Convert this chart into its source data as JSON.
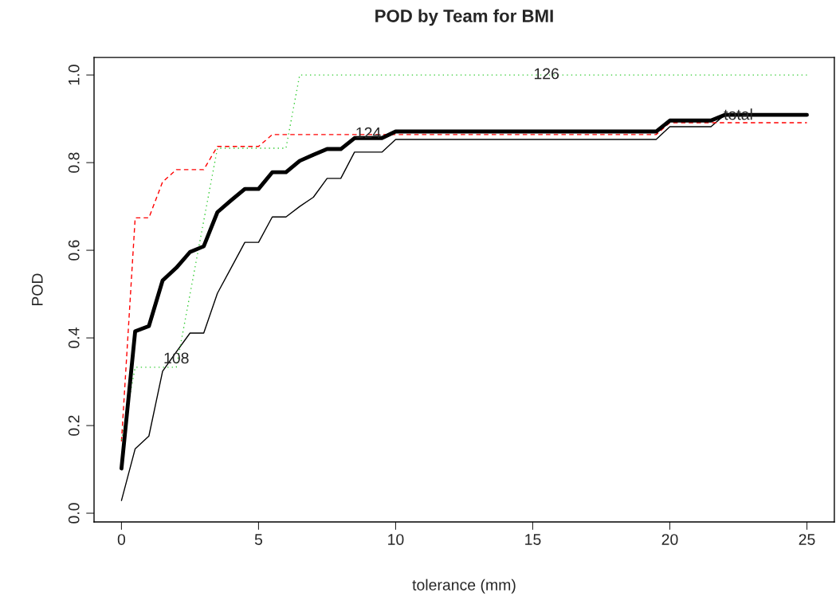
{
  "chart_data": {
    "type": "line",
    "title": "POD by Team for BMI",
    "xlabel": "tolerance (mm)",
    "ylabel": "POD",
    "x": [
      0,
      0.5,
      1,
      1.5,
      2,
      2.5,
      3,
      3.5,
      4,
      4.5,
      5,
      5.5,
      6,
      6.5,
      7,
      7.5,
      8,
      8.5,
      9,
      9.5,
      10,
      10.5,
      11,
      11.5,
      12,
      12.5,
      13,
      13.5,
      14,
      14.5,
      15,
      15.5,
      16,
      16.5,
      17,
      17.5,
      18,
      18.5,
      19,
      19.5,
      20,
      20.5,
      21,
      21.5,
      22,
      22.5,
      23,
      23.5,
      24,
      24.5,
      25
    ],
    "series": [
      {
        "color": "#000000",
        "line_style": "solid",
        "values": [
          0.029,
          0.147,
          0.176,
          0.324,
          0.368,
          0.411,
          0.411,
          0.502,
          0.56,
          0.618,
          0.618,
          0.676,
          0.676,
          0.7,
          0.721,
          0.764,
          0.764,
          0.824,
          0.824,
          0.824,
          0.853,
          0.853,
          0.853,
          0.853,
          0.853,
          0.853,
          0.853,
          0.853,
          0.853,
          0.853,
          0.853,
          0.853,
          0.853,
          0.853,
          0.853,
          0.853,
          0.853,
          0.853,
          0.853,
          0.853,
          0.882,
          0.882,
          0.882,
          0.882,
          0.909,
          0.909,
          0.909,
          0.909,
          0.909,
          0.909,
          0.909
        ]
      },
      {
        "color": "#ff0000",
        "line_style": "dashed",
        "values": [
          0.164,
          0.674,
          0.674,
          0.756,
          0.784,
          0.784,
          0.784,
          0.837,
          0.837,
          0.837,
          0.837,
          0.864,
          0.864,
          0.864,
          0.864,
          0.864,
          0.864,
          0.864,
          0.864,
          0.864,
          0.864,
          0.864,
          0.864,
          0.864,
          0.864,
          0.864,
          0.864,
          0.864,
          0.864,
          0.864,
          0.864,
          0.864,
          0.864,
          0.864,
          0.864,
          0.864,
          0.864,
          0.864,
          0.864,
          0.864,
          0.891,
          0.891,
          0.891,
          0.891,
          0.891,
          0.891,
          0.891,
          0.891,
          0.891,
          0.891,
          0.891
        ]
      },
      {
        "color": "#33cc33",
        "line_style": "dotted",
        "values": [
          0.167,
          0.333,
          0.333,
          0.333,
          0.333,
          0.5,
          0.667,
          0.833,
          0.833,
          0.833,
          0.833,
          0.833,
          0.833,
          1.0,
          1.0,
          1.0,
          1.0,
          1.0,
          1.0,
          1.0,
          1.0,
          1.0,
          1.0,
          1.0,
          1.0,
          1.0,
          1.0,
          1.0,
          1.0,
          1.0,
          1.0,
          1.0,
          1.0,
          1.0,
          1.0,
          1.0,
          1.0,
          1.0,
          1.0,
          1.0,
          1.0,
          1.0,
          1.0,
          1.0,
          1.0,
          1.0,
          1.0,
          1.0,
          1.0,
          1.0,
          1.0
        ]
      },
      {
        "color": "#000000",
        "line_style": "solid",
        "values": [
          0.102,
          0.415,
          0.427,
          0.531,
          0.56,
          0.596,
          0.609,
          0.687,
          0.714,
          0.74,
          0.74,
          0.778,
          0.778,
          0.804,
          0.818,
          0.831,
          0.831,
          0.856,
          0.856,
          0.856,
          0.871,
          0.871,
          0.871,
          0.871,
          0.871,
          0.871,
          0.871,
          0.871,
          0.871,
          0.871,
          0.871,
          0.871,
          0.871,
          0.871,
          0.871,
          0.871,
          0.871,
          0.871,
          0.871,
          0.871,
          0.896,
          0.896,
          0.896,
          0.896,
          0.909,
          0.909,
          0.909,
          0.909,
          0.909,
          0.909,
          0.909
        ]
      }
    ],
    "annotations": [
      {
        "text": "108",
        "x": 2.0,
        "y": 0.351
      },
      {
        "text": "124",
        "x": 9.0,
        "y": 0.865
      },
      {
        "text": "126",
        "x": 15.5,
        "y": 1.0
      },
      {
        "text": "total",
        "x": 22.5,
        "y": 0.907
      }
    ],
    "xlim": [
      -1,
      26
    ],
    "ylim": [
      -0.02,
      1.04
    ],
    "xticks": [
      0,
      5,
      10,
      15,
      20,
      25
    ],
    "yticks": [
      {
        "value": 0,
        "label": "0.0"
      },
      {
        "value": 0.2,
        "label": "0.2"
      },
      {
        "value": 0.4,
        "label": "0.4"
      },
      {
        "value": 0.6,
        "label": "0.6"
      },
      {
        "value": 0.8,
        "label": "0.8"
      },
      {
        "value": 1,
        "label": "1.0"
      }
    ],
    "grid": false,
    "legend": false,
    "marker": "none"
  }
}
